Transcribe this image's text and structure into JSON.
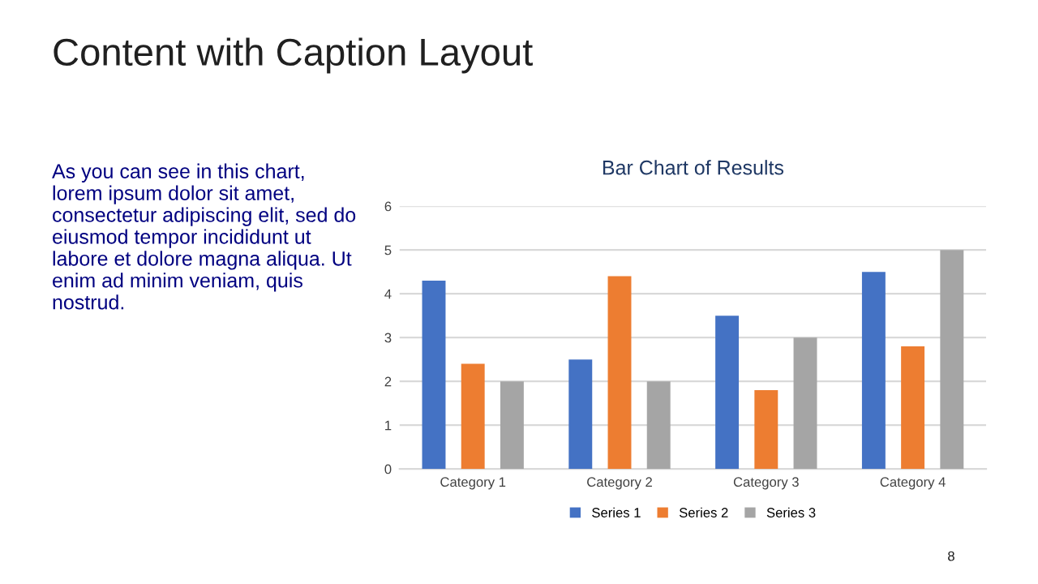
{
  "chart_data": {
    "type": "bar",
    "title": "Bar Chart of Results",
    "categories": [
      "Category 1",
      "Category 2",
      "Category 3",
      "Category 4"
    ],
    "series": [
      {
        "name": "Series 1",
        "color": "#4472c4",
        "values": [
          4.3,
          2.5,
          3.5,
          4.5
        ]
      },
      {
        "name": "Series 2",
        "color": "#ed7d31",
        "values": [
          2.4,
          4.4,
          1.8,
          2.8
        ]
      },
      {
        "name": "Series 3",
        "color": "#a5a5a5",
        "values": [
          2,
          2,
          3,
          5
        ]
      }
    ],
    "ylim": [
      0,
      6
    ],
    "yticks": [
      0,
      1,
      2,
      3,
      4,
      5,
      6
    ],
    "grid": "y",
    "legend": "bottom",
    "annotations": [
      "Content with Caption Layout",
      "As you can see in this chart,\nlorem ipsum dolor sit amet,\nconsectetur adipiscing elit, sed do\neiusmod tempor incididunt ut\nlabore et dolore magna aliqua. Ut\nenim ad minim veniam, quis\nnostrud.",
      "8"
    ]
  }
}
